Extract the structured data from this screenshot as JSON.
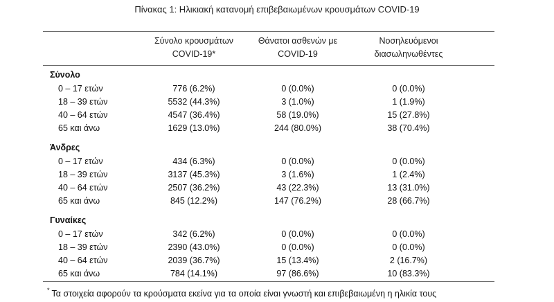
{
  "title": "Πίνακας 1: Ηλικιακή κατανομή επιβεβαιωμένων κρουσμάτων COVID-19",
  "columns": [
    {
      "line1": "Σύνολο κρουσμάτων",
      "line2": "COVID-19*"
    },
    {
      "line1": "Θάνατοι ασθενών με",
      "line2": "COVID-19"
    },
    {
      "line1": "Νοσηλευόμενοι",
      "line2": "διασωληνωθέντες"
    }
  ],
  "sections": [
    {
      "name": "Σύνολο",
      "rows": [
        {
          "age": "0 – 17 ετών",
          "cases": "776 (6.2%)",
          "deaths": "0 (0.0%)",
          "intubated": "0 (0.0%)"
        },
        {
          "age": "18 – 39 ετών",
          "cases": "5532 (44.3%)",
          "deaths": "3 (1.0%)",
          "intubated": "1 (1.9%)"
        },
        {
          "age": "40 – 64 ετών",
          "cases": "4547 (36.4%)",
          "deaths": "58 (19.0%)",
          "intubated": "15 (27.8%)"
        },
        {
          "age": "65 και άνω",
          "cases": "1629 (13.0%)",
          "deaths": "244 (80.0%)",
          "intubated": "38 (70.4%)"
        }
      ]
    },
    {
      "name": "Άνδρες",
      "rows": [
        {
          "age": "0 – 17 ετών",
          "cases": "434 (6.3%)",
          "deaths": "0 (0.0%)",
          "intubated": "0 (0.0%)"
        },
        {
          "age": "18 – 39 ετών",
          "cases": "3137 (45.3%)",
          "deaths": "3 (1.6%)",
          "intubated": "1 (2.4%)"
        },
        {
          "age": "40 – 64 ετών",
          "cases": "2507 (36.2%)",
          "deaths": "43 (22.3%)",
          "intubated": "13 (31.0%)"
        },
        {
          "age": "65 και άνω",
          "cases": "845 (12.2%)",
          "deaths": "147 (76.2%)",
          "intubated": "28 (66.7%)"
        }
      ]
    },
    {
      "name": "Γυναίκες",
      "rows": [
        {
          "age": "0 – 17 ετών",
          "cases": "342 (6.2%)",
          "deaths": "0 (0.0%)",
          "intubated": "0 (0.0%)"
        },
        {
          "age": "18 – 39 ετών",
          "cases": "2390 (43.0%)",
          "deaths": "0 (0.0%)",
          "intubated": "0 (0.0%)"
        },
        {
          "age": "40 – 64 ετών",
          "cases": "2039 (36.7%)",
          "deaths": "15 (13.4%)",
          "intubated": "2 (16.7%)"
        },
        {
          "age": "65 και άνω",
          "cases": "784 (14.1%)",
          "deaths": "97 (86.6%)",
          "intubated": "10 (83.3%)"
        }
      ]
    }
  ],
  "footnote": {
    "marker": "*",
    "text": "Τα στοιχεία αφορούν τα κρούσματα εκείνα για τα οποία είναι γνωστή και επιβεβαιωμένη η ηλικία τους"
  }
}
